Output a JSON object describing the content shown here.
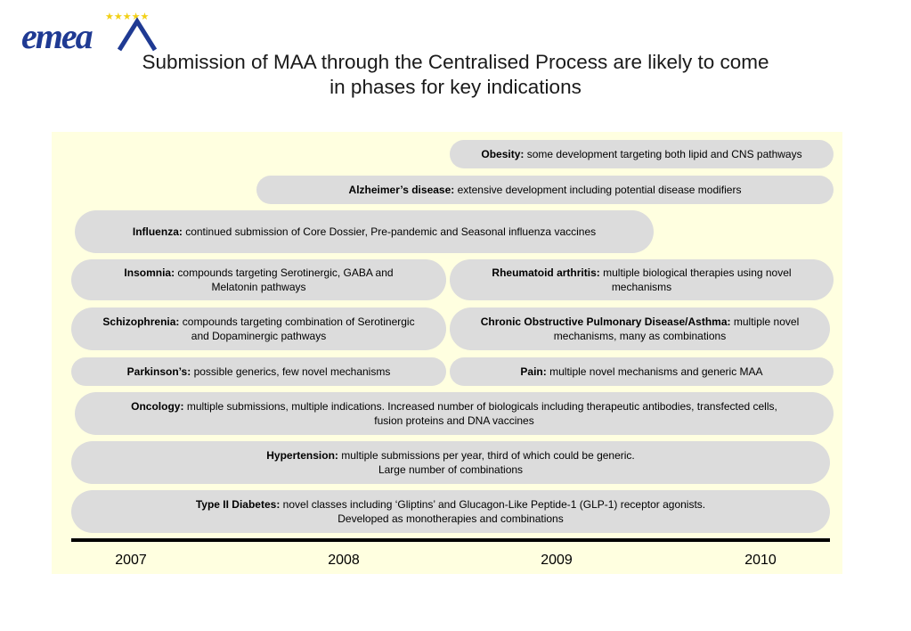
{
  "header": {
    "logo_text": "emea",
    "title_line1": "Submission of MAA through the Centralised Process are likely to come",
    "title_line2": "in phases for key indications"
  },
  "indications": [
    {
      "name": "Obesity:",
      "desc": "some development targeting both lipid and CNS pathways"
    },
    {
      "name": "Alzheimer’s disease:",
      "desc": "extensive development including potential disease modifiers"
    },
    {
      "name": "Influenza:",
      "desc": "continued submission of Core Dossier, Pre-pandemic and Seasonal influenza vaccines"
    },
    {
      "name": "Insomnia:",
      "desc": "compounds targeting Serotinergic, GABA and",
      "desc2": "Melatonin pathways"
    },
    {
      "name": "Rheumatoid arthritis:",
      "desc": "multiple biological therapies using novel",
      "desc2": "mechanisms"
    },
    {
      "name": "Schizophrenia:",
      "desc": "compounds targeting combination of Serotinergic",
      "desc2": "and Dopaminergic pathways"
    },
    {
      "name": "Chronic Obstructive Pulmonary Disease/Asthma:",
      "desc": "multiple novel",
      "desc2": "mechanisms, many as combinations"
    },
    {
      "name": "Parkinson’s:",
      "desc": "possible generics, few novel mechanisms"
    },
    {
      "name": "Pain:",
      "desc": "multiple novel mechanisms and generic MAA"
    },
    {
      "name": "Oncology:",
      "desc": "multiple submissions, multiple indications.  Increased number of biologicals including therapeutic antibodies, transfected cells,",
      "desc2": "fusion proteins and DNA vaccines"
    },
    {
      "name": "Hypertension:",
      "desc": "multiple submissions per year, third of which could be generic.",
      "desc2": "Large number of combinations"
    },
    {
      "name": "Type II Diabetes:",
      "desc": "novel classes including ‘Gliptins’ and Glucagon-Like Peptide-1 (GLP-1) receptor agonists.",
      "desc2": "Developed as monotherapies and combinations"
    }
  ],
  "timeline": {
    "years": [
      "2007",
      "2008",
      "2009",
      "2010"
    ]
  },
  "colors": {
    "logo_blue": "#1f3a93",
    "star_yellow": "#f2d016",
    "panel_bg": "#ffffe0",
    "pill_bg": "#dcdcdc"
  }
}
